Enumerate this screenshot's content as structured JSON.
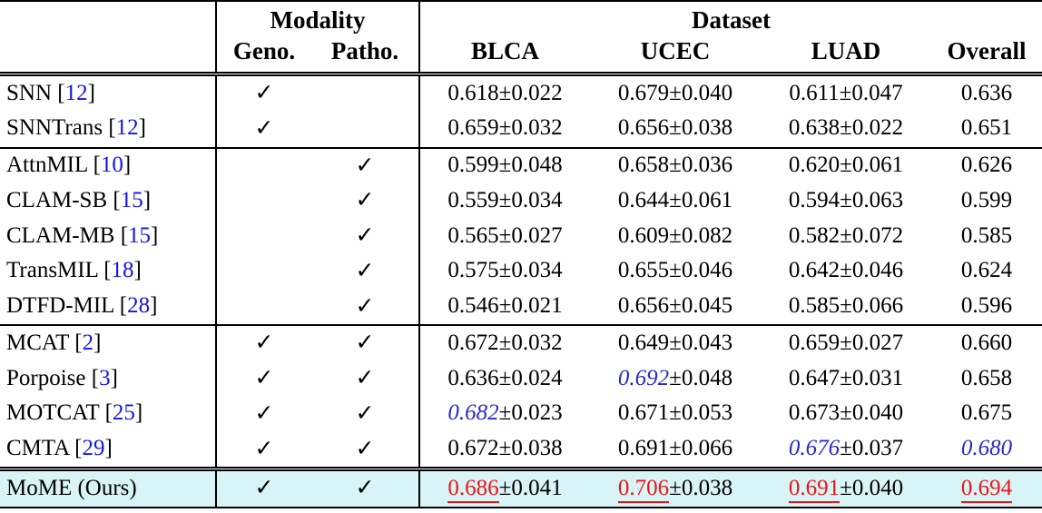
{
  "header": {
    "modality_label": "Modality",
    "dataset_label": "Dataset",
    "geno_label": "Geno.",
    "patho_label": "Patho.",
    "datasets": [
      "BLCA",
      "UCEC",
      "LUAD",
      "Overall"
    ]
  },
  "icons": {
    "checkmark": "✓"
  },
  "colors": {
    "best_value": "#ee1414",
    "second_best_value": "#2828cc",
    "citation_link": "#1414e8",
    "highlight_row_bg": "#d8f4f7"
  },
  "rows": [
    {
      "method": "SNN",
      "cite": "12",
      "geno": true,
      "patho": false,
      "separator": "none",
      "highlight": false,
      "cells": [
        {
          "value": "0.618",
          "pm": "0.022",
          "style": "normal"
        },
        {
          "value": "0.679",
          "pm": "0.040",
          "style": "normal"
        },
        {
          "value": "0.611",
          "pm": "0.047",
          "style": "normal"
        }
      ],
      "overall": {
        "value": "0.636",
        "style": "normal"
      }
    },
    {
      "method": "SNNTrans",
      "cite": "12",
      "geno": true,
      "patho": false,
      "separator": "none",
      "highlight": false,
      "cells": [
        {
          "value": "0.659",
          "pm": "0.032",
          "style": "normal"
        },
        {
          "value": "0.656",
          "pm": "0.038",
          "style": "normal"
        },
        {
          "value": "0.638",
          "pm": "0.022",
          "style": "normal"
        }
      ],
      "overall": {
        "value": "0.651",
        "style": "normal"
      }
    },
    {
      "method": "AttnMIL",
      "cite": "10",
      "geno": false,
      "patho": true,
      "separator": "single",
      "highlight": false,
      "cells": [
        {
          "value": "0.599",
          "pm": "0.048",
          "style": "normal"
        },
        {
          "value": "0.658",
          "pm": "0.036",
          "style": "normal"
        },
        {
          "value": "0.620",
          "pm": "0.061",
          "style": "normal"
        }
      ],
      "overall": {
        "value": "0.626",
        "style": "normal"
      }
    },
    {
      "method": "CLAM-SB",
      "cite": "15",
      "geno": false,
      "patho": true,
      "separator": "none",
      "highlight": false,
      "cells": [
        {
          "value": "0.559",
          "pm": "0.034",
          "style": "normal"
        },
        {
          "value": "0.644",
          "pm": "0.061",
          "style": "normal"
        },
        {
          "value": "0.594",
          "pm": "0.063",
          "style": "normal"
        }
      ],
      "overall": {
        "value": "0.599",
        "style": "normal"
      }
    },
    {
      "method": "CLAM-MB",
      "cite": "15",
      "geno": false,
      "patho": true,
      "separator": "none",
      "highlight": false,
      "cells": [
        {
          "value": "0.565",
          "pm": "0.027",
          "style": "normal"
        },
        {
          "value": "0.609",
          "pm": "0.082",
          "style": "normal"
        },
        {
          "value": "0.582",
          "pm": "0.072",
          "style": "normal"
        }
      ],
      "overall": {
        "value": "0.585",
        "style": "normal"
      }
    },
    {
      "method": "TransMIL",
      "cite": "18",
      "geno": false,
      "patho": true,
      "separator": "none",
      "highlight": false,
      "cells": [
        {
          "value": "0.575",
          "pm": "0.034",
          "style": "normal"
        },
        {
          "value": "0.655",
          "pm": "0.046",
          "style": "normal"
        },
        {
          "value": "0.642",
          "pm": "0.046",
          "style": "normal"
        }
      ],
      "overall": {
        "value": "0.624",
        "style": "normal"
      }
    },
    {
      "method": "DTFD-MIL",
      "cite": "28",
      "geno": false,
      "patho": true,
      "separator": "none",
      "highlight": false,
      "cells": [
        {
          "value": "0.546",
          "pm": "0.021",
          "style": "normal"
        },
        {
          "value": "0.656",
          "pm": "0.045",
          "style": "normal"
        },
        {
          "value": "0.585",
          "pm": "0.066",
          "style": "normal"
        }
      ],
      "overall": {
        "value": "0.596",
        "style": "normal"
      }
    },
    {
      "method": "MCAT",
      "cite": "2",
      "geno": true,
      "patho": true,
      "separator": "single",
      "highlight": false,
      "cells": [
        {
          "value": "0.672",
          "pm": "0.032",
          "style": "normal"
        },
        {
          "value": "0.649",
          "pm": "0.043",
          "style": "normal"
        },
        {
          "value": "0.659",
          "pm": "0.027",
          "style": "normal"
        }
      ],
      "overall": {
        "value": "0.660",
        "style": "normal"
      }
    },
    {
      "method": "Porpoise",
      "cite": "3",
      "geno": true,
      "patho": true,
      "separator": "none",
      "highlight": false,
      "cells": [
        {
          "value": "0.636",
          "pm": "0.024",
          "style": "normal"
        },
        {
          "value": "0.692",
          "pm": "0.048",
          "style": "second"
        },
        {
          "value": "0.647",
          "pm": "0.031",
          "style": "normal"
        }
      ],
      "overall": {
        "value": "0.658",
        "style": "normal"
      }
    },
    {
      "method": "MOTCAT",
      "cite": "25",
      "geno": true,
      "patho": true,
      "separator": "none",
      "highlight": false,
      "cells": [
        {
          "value": "0.682",
          "pm": "0.023",
          "style": "second"
        },
        {
          "value": "0.671",
          "pm": "0.053",
          "style": "normal"
        },
        {
          "value": "0.673",
          "pm": "0.040",
          "style": "normal"
        }
      ],
      "overall": {
        "value": "0.675",
        "style": "normal"
      }
    },
    {
      "method": "CMTA",
      "cite": "29",
      "geno": true,
      "patho": true,
      "separator": "none",
      "highlight": false,
      "cells": [
        {
          "value": "0.672",
          "pm": "0.038",
          "style": "normal"
        },
        {
          "value": "0.691",
          "pm": "0.066",
          "style": "normal"
        },
        {
          "value": "0.676",
          "pm": "0.037",
          "style": "second"
        }
      ],
      "overall": {
        "value": "0.680",
        "style": "second"
      }
    },
    {
      "method": "MoME (Ours)",
      "cite": null,
      "geno": true,
      "patho": true,
      "separator": "double",
      "highlight": true,
      "cells": [
        {
          "value": "0.686",
          "pm": "0.041",
          "style": "best"
        },
        {
          "value": "0.706",
          "pm": "0.038",
          "style": "best"
        },
        {
          "value": "0.691",
          "pm": "0.040",
          "style": "best"
        }
      ],
      "overall": {
        "value": "0.694",
        "style": "best"
      }
    }
  ]
}
